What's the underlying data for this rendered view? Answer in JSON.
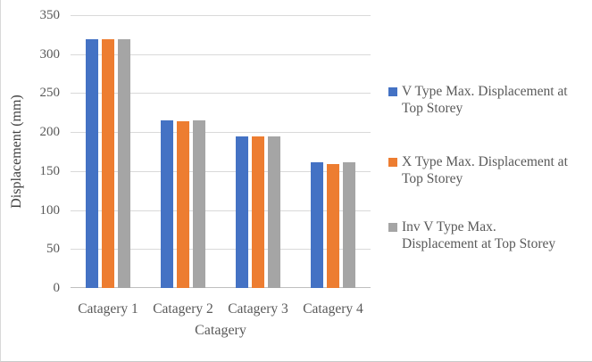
{
  "chart_data": {
    "type": "bar",
    "title": "",
    "categories": [
      "Catagery 1",
      "Catagery 2",
      "Catagery 3",
      "Catagery 4"
    ],
    "series": [
      {
        "name": "V Type Max. Displacement at Top Storey",
        "color": "#4472C4",
        "values": [
          319,
          215,
          195,
          161
        ]
      },
      {
        "name": "X Type Max. Displacement at Top Storey",
        "color": "#ED7D31",
        "values": [
          319,
          214,
          194,
          159
        ]
      },
      {
        "name": "Inv V Type Max. Displacement at Top Storey",
        "color": "#A5A5A5",
        "values": [
          319,
          215,
          195,
          161
        ]
      }
    ],
    "xlabel": "Catagery",
    "ylabel": "Displacement (mm)",
    "ylim": [
      0,
      350
    ],
    "yticks": [
      0,
      50,
      100,
      150,
      200,
      250,
      300,
      350
    ],
    "grid": true,
    "legend_position": "right",
    "colors": {
      "gridline": "#D9D9D9",
      "axis_line": "#BFBFBF",
      "text": "#595959"
    }
  }
}
